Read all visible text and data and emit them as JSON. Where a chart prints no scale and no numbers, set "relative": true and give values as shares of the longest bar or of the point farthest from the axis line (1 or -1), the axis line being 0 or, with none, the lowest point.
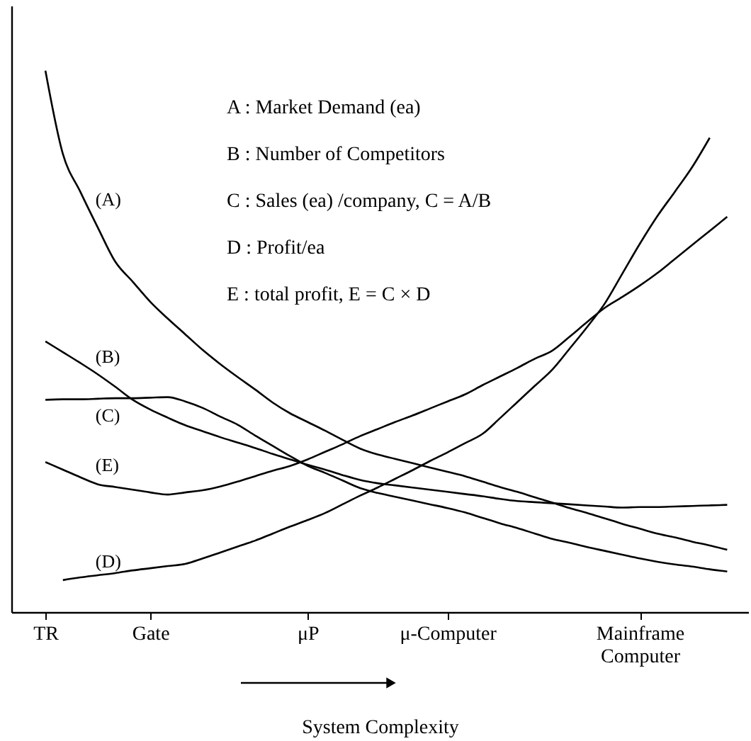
{
  "chart_data": {
    "type": "line",
    "relative": true,
    "xlabel": "System Complexity",
    "categories": [
      "TR",
      null,
      null,
      null,
      null,
      null,
      "Gate",
      null,
      null,
      null,
      null,
      null,
      null,
      null,
      null,
      "μP",
      null,
      null,
      null,
      null,
      null,
      null,
      null,
      "μ-Computer",
      null,
      null,
      null,
      null,
      null,
      null,
      null,
      null,
      null,
      null,
      "Mainframe Computer",
      null,
      null,
      null,
      null,
      null
    ],
    "series": [
      {
        "name": "(A)",
        "color": "#000000",
        "values": [
          1.0,
          0.846,
          0.776,
          0.71,
          0.647,
          0.61,
          0.573,
          0.542,
          0.513,
          0.484,
          0.458,
          0.434,
          0.411,
          0.387,
          0.367,
          0.351,
          0.335,
          0.318,
          0.302,
          0.291,
          0.283,
          0.275,
          0.267,
          0.259,
          0.251,
          0.241,
          0.231,
          0.222,
          0.212,
          0.202,
          0.192,
          0.183,
          0.173,
          0.163,
          0.154,
          0.145,
          0.138,
          0.13,
          0.123,
          0.115
        ]
      },
      {
        "name": "(B)",
        "color": "#000000",
        "values": [
          0.5,
          0.48,
          0.46,
          0.439,
          0.416,
          0.392,
          0.374,
          0.359,
          0.345,
          0.334,
          0.323,
          0.313,
          0.303,
          0.292,
          0.282,
          0.272,
          0.263,
          0.253,
          0.244,
          0.238,
          0.234,
          0.23,
          0.226,
          0.222,
          0.218,
          0.214,
          0.209,
          0.205,
          0.203,
          0.201,
          0.199,
          0.197,
          0.195,
          0.193,
          0.194,
          0.194,
          0.195,
          0.196,
          0.197,
          0.198
        ]
      },
      {
        "name": "(C)",
        "color": "#000000",
        "values": [
          0.392,
          0.393,
          0.393,
          0.394,
          0.395,
          0.395,
          0.396,
          0.397,
          0.389,
          0.377,
          0.361,
          0.346,
          0.326,
          0.307,
          0.288,
          0.27,
          0.257,
          0.243,
          0.229,
          0.22,
          0.213,
          0.206,
          0.199,
          0.192,
          0.184,
          0.174,
          0.164,
          0.155,
          0.145,
          0.135,
          0.128,
          0.12,
          0.113,
          0.106,
          0.099,
          0.093,
          0.088,
          0.084,
          0.079,
          0.075
        ]
      },
      {
        "name": "(D)",
        "color": "#000000",
        "values": [
          null,
          0.059,
          0.064,
          0.068,
          0.072,
          0.077,
          0.081,
          0.085,
          0.089,
          0.099,
          0.11,
          0.121,
          0.132,
          0.145,
          0.158,
          0.17,
          0.183,
          0.199,
          0.215,
          0.23,
          0.246,
          0.262,
          0.279,
          0.295,
          0.312,
          0.329,
          0.358,
          0.388,
          0.418,
          0.448,
          0.487,
          0.527,
          0.57,
          0.625,
          0.68,
          0.731,
          0.776,
          0.822,
          0.876,
          null
        ]
      },
      {
        "name": "(E)",
        "color": "#000000",
        "values": [
          0.277,
          0.263,
          0.249,
          0.236,
          0.231,
          0.226,
          0.221,
          0.217,
          0.221,
          0.225,
          0.232,
          0.241,
          0.251,
          0.261,
          0.27,
          0.282,
          0.296,
          0.31,
          0.325,
          0.338,
          0.351,
          0.363,
          0.376,
          0.389,
          0.402,
          0.419,
          0.435,
          0.451,
          0.468,
          0.483,
          0.509,
          0.536,
          0.562,
          0.582,
          0.603,
          0.626,
          0.652,
          0.678,
          0.704,
          0.73
        ]
      }
    ],
    "annotations": [
      "A : Market Demand (ea)",
      "B : Number of Competitors",
      "C : Sales (ea) /company, C = A/B",
      "D : Profit/ea",
      "E : total profit, E = C × D"
    ],
    "grid": false,
    "legend": false,
    "marker": "none",
    "line_style": "solid"
  }
}
